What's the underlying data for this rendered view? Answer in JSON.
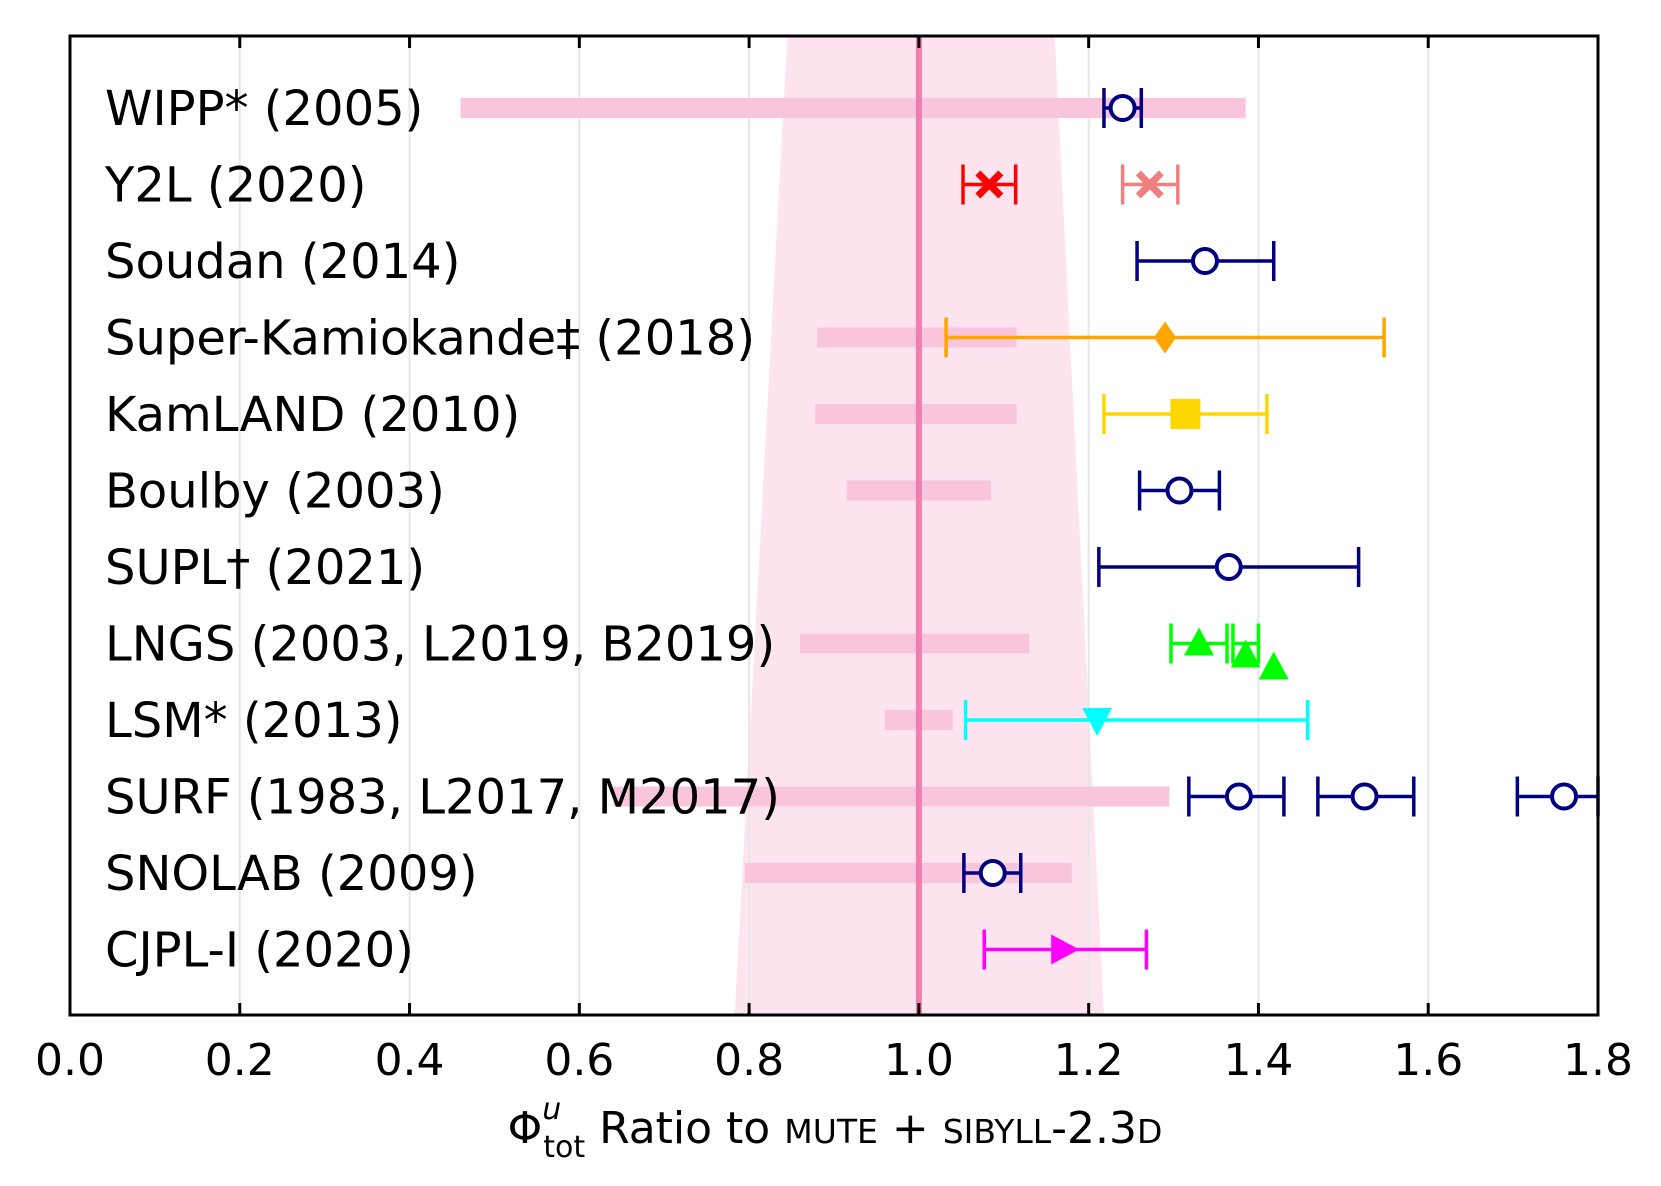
{
  "chart_data": {
    "type": "scatter",
    "xlim": [
      0.0,
      1.8
    ],
    "xticks": [
      "0.0",
      "0.2",
      "0.4",
      "0.6",
      "0.8",
      "1.0",
      "1.2",
      "1.4",
      "1.6",
      "1.8"
    ],
    "grid": "vertical",
    "reference_line": 1.0,
    "reference_color": "#f07eb0",
    "band_color": "#fde4ef",
    "range_bar_color": "#f9c5dc",
    "xlabel": {
      "phi": "Φ",
      "sup": "u",
      "sub": "tot",
      "ratio_text": " Ratio to ",
      "mute": "MUTE",
      "plus": " + ",
      "sibyll": "SIBYLL",
      "version": "-2.3",
      "d": "D"
    },
    "rows": [
      {
        "label": "WIPP* (2005)",
        "range": [
          0.46,
          1.385
        ],
        "points": [
          {
            "x": 1.24,
            "xerr": [
              1.218,
              1.262
            ],
            "marker": "circle-open",
            "color": "#000080"
          }
        ]
      },
      {
        "label": "Y2L (2020)",
        "range": null,
        "points": [
          {
            "x": 1.083,
            "xerr": [
              1.052,
              1.114
            ],
            "marker": "x-filled",
            "color": "#ff0000"
          },
          {
            "x": 1.272,
            "xerr": [
              1.24,
              1.305
            ],
            "marker": "x-filled",
            "color": "#f08080"
          }
        ]
      },
      {
        "label": "Soudan (2014)",
        "range": null,
        "points": [
          {
            "x": 1.337,
            "xerr": [
              1.257,
              1.418
            ],
            "marker": "circle-open",
            "color": "#000080"
          }
        ]
      },
      {
        "label": "Super-Kamiokande‡ (2018)",
        "range": [
          0.88,
          1.115
        ],
        "points": [
          {
            "x": 1.29,
            "xerr": [
              1.032,
              1.548
            ],
            "marker": "diamond",
            "color": "#ffa500"
          }
        ]
      },
      {
        "label": "KamLAND (2010)",
        "range": [
          0.878,
          1.115
        ],
        "points": [
          {
            "x": 1.314,
            "xerr": [
              1.218,
              1.41
            ],
            "marker": "square",
            "color": "#ffd700"
          }
        ]
      },
      {
        "label": "Boulby (2003)",
        "range": [
          0.915,
          1.085
        ],
        "points": [
          {
            "x": 1.307,
            "xerr": [
              1.26,
              1.354
            ],
            "marker": "circle-open",
            "color": "#000080"
          }
        ]
      },
      {
        "label": "SUPL† (2021)",
        "range": null,
        "points": [
          {
            "x": 1.365,
            "xerr": [
              1.212,
              1.518
            ],
            "marker": "circle-open",
            "color": "#000080"
          }
        ]
      },
      {
        "label": "LNGS (2003, L2019, B2019)",
        "range": [
          0.86,
          1.13
        ],
        "points": [
          {
            "x": 1.33,
            "xerr": [
              1.297,
              1.363
            ],
            "marker": "triangle-up",
            "color": "#00ff00"
          },
          {
            "x": 1.385,
            "xerr": [
              1.37,
              1.4
            ],
            "marker": "triangle-up",
            "color": "#00ff00"
          },
          {
            "x": 1.418,
            "xerr": null,
            "marker": "triangle-up",
            "color": "#00ff00"
          }
        ]
      },
      {
        "label": "LSM* (2013)",
        "range": [
          0.96,
          1.04
        ],
        "points": [
          {
            "x": 1.21,
            "xerr": [
              1.055,
              1.458
            ],
            "marker": "triangle-down",
            "color": "#00ffff"
          }
        ]
      },
      {
        "label": "SURF (1983, L2017, M2017)",
        "range": [
          0.64,
          1.295
        ],
        "points": [
          {
            "x": 1.377,
            "xerr": [
              1.318,
              1.43
            ],
            "marker": "circle-open",
            "color": "#000080"
          },
          {
            "x": 1.525,
            "xerr": [
              1.47,
              1.583
            ],
            "marker": "circle-open",
            "color": "#000080"
          },
          {
            "x": 1.76,
            "xerr": [
              1.705,
              1.8
            ],
            "marker": "circle-open",
            "color": "#000080"
          }
        ]
      },
      {
        "label": "SNOLAB (2009)",
        "range": [
          0.795,
          1.18
        ],
        "points": [
          {
            "x": 1.087,
            "xerr": [
              1.053,
              1.12
            ],
            "marker": "circle-open",
            "color": "#000080"
          }
        ]
      },
      {
        "label": "CJPL-I (2020)",
        "range": null,
        "points": [
          {
            "x": 1.17,
            "xerr": [
              1.077,
              1.268
            ],
            "marker": "triangle-right",
            "color": "#ff00ff"
          }
        ]
      }
    ]
  }
}
